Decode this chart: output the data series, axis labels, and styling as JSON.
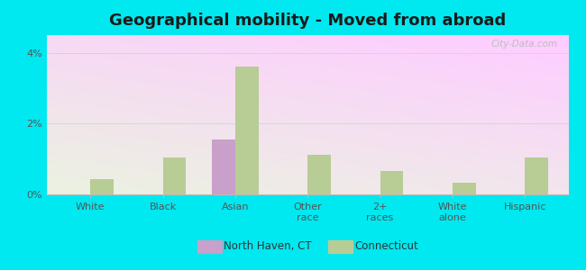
{
  "title": "Geographical mobility - Moved from abroad",
  "categories": [
    "White",
    "Black",
    "Asian",
    "Other\nrace",
    "2+\nraces",
    "White\nalone",
    "Hispanic"
  ],
  "north_haven_values": [
    0.0,
    0.0,
    1.55,
    0.0,
    0.0,
    0.0,
    0.0
  ],
  "connecticut_values": [
    0.42,
    1.05,
    3.62,
    1.12,
    0.65,
    0.33,
    1.05
  ],
  "ylim": [
    0,
    4.5
  ],
  "yticks": [
    0,
    2,
    4
  ],
  "ytick_labels": [
    "0%",
    "2%",
    "4%"
  ],
  "north_haven_color": "#c9a0c9",
  "connecticut_color": "#b8cc96",
  "bar_width": 0.32,
  "background_outer": "#00e8f0",
  "title_fontsize": 13,
  "legend_labels": [
    "North Haven, CT",
    "Connecticut"
  ],
  "watermark": "City-Data.com"
}
